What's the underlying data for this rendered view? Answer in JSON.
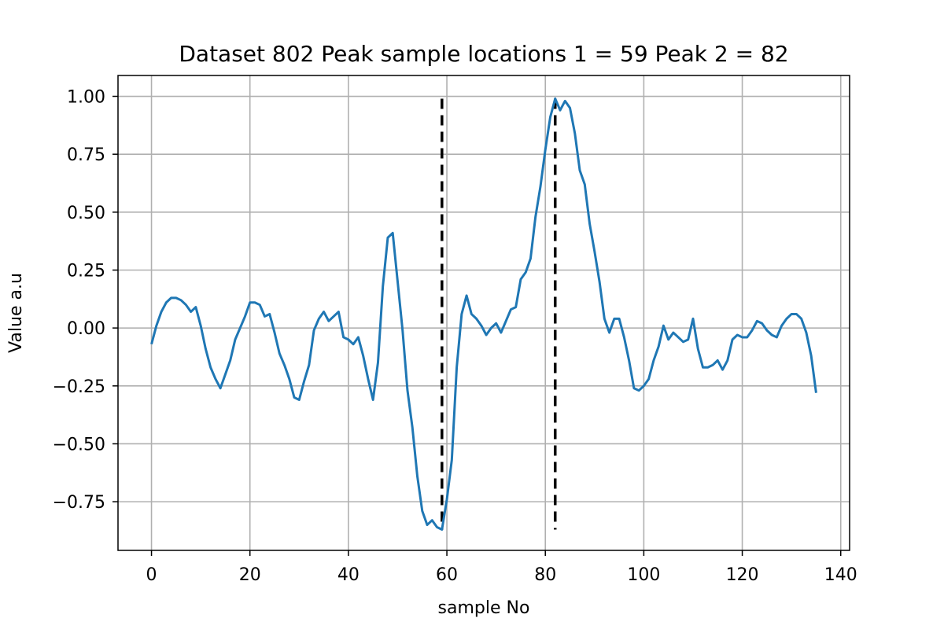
{
  "chart_data": {
    "type": "line",
    "title": "Dataset 802 Peak sample locations 1 = 59 Peak 2 = 82",
    "xlabel": "sample No",
    "ylabel": "Value a.u",
    "xlim": [
      -6.8,
      141.8
    ],
    "ylim": [
      -0.96,
      1.09
    ],
    "x_ticks": [
      0,
      20,
      40,
      60,
      80,
      100,
      120,
      140
    ],
    "x_tick_labels": [
      "0",
      "20",
      "40",
      "60",
      "80",
      "100",
      "120",
      "140"
    ],
    "y_ticks": [
      1.0,
      0.75,
      0.5,
      0.25,
      0.0,
      -0.25,
      -0.5,
      -0.75
    ],
    "y_tick_labels": [
      "1.00",
      "0.75",
      "0.50",
      "0.25",
      "0.00",
      "−0.25",
      "−0.50",
      "−0.75"
    ],
    "grid": true,
    "series": [
      {
        "color": "#1f77b4",
        "x_start": 0,
        "x_step": 1,
        "values": [
          -0.07,
          0.01,
          0.07,
          0.11,
          0.13,
          0.13,
          0.12,
          0.1,
          0.07,
          0.09,
          0.01,
          -0.09,
          -0.17,
          -0.22,
          -0.26,
          -0.2,
          -0.14,
          -0.05,
          0.0,
          0.05,
          0.11,
          0.11,
          0.1,
          0.05,
          0.06,
          -0.02,
          -0.11,
          -0.16,
          -0.22,
          -0.3,
          -0.31,
          -0.23,
          -0.16,
          -0.01,
          0.04,
          0.07,
          0.03,
          0.05,
          0.07,
          -0.04,
          -0.05,
          -0.07,
          -0.04,
          -0.12,
          -0.22,
          -0.31,
          -0.15,
          0.18,
          0.39,
          0.41,
          0.2,
          -0.01,
          -0.27,
          -0.43,
          -0.64,
          -0.79,
          -0.85,
          -0.83,
          -0.86,
          -0.87,
          -0.74,
          -0.57,
          -0.17,
          0.06,
          0.14,
          0.06,
          0.04,
          0.01,
          -0.03,
          0.0,
          0.02,
          -0.02,
          0.03,
          0.08,
          0.09,
          0.21,
          0.24,
          0.3,
          0.48,
          0.61,
          0.77,
          0.91,
          0.99,
          0.94,
          0.98,
          0.95,
          0.84,
          0.68,
          0.62,
          0.45,
          0.33,
          0.2,
          0.04,
          -0.02,
          0.04,
          0.04,
          -0.04,
          -0.14,
          -0.26,
          -0.27,
          -0.25,
          -0.22,
          -0.14,
          -0.08,
          0.01,
          -0.05,
          -0.02,
          -0.04,
          -0.06,
          -0.05,
          0.04,
          -0.09,
          -0.17,
          -0.17,
          -0.16,
          -0.14,
          -0.18,
          -0.14,
          -0.05,
          -0.03,
          -0.04,
          -0.04,
          -0.01,
          0.03,
          0.02,
          -0.01,
          -0.03,
          -0.04,
          0.01,
          0.04,
          0.06,
          0.06,
          0.04,
          -0.02,
          -0.12,
          -0.28
        ]
      }
    ],
    "vlines": [
      {
        "x": 59,
        "ymin": -0.87,
        "ymax": 0.99,
        "color": "#000000",
        "style": "dashed"
      },
      {
        "x": 82,
        "ymin": -0.87,
        "ymax": 0.99,
        "color": "#000000",
        "style": "dashed"
      }
    ]
  }
}
